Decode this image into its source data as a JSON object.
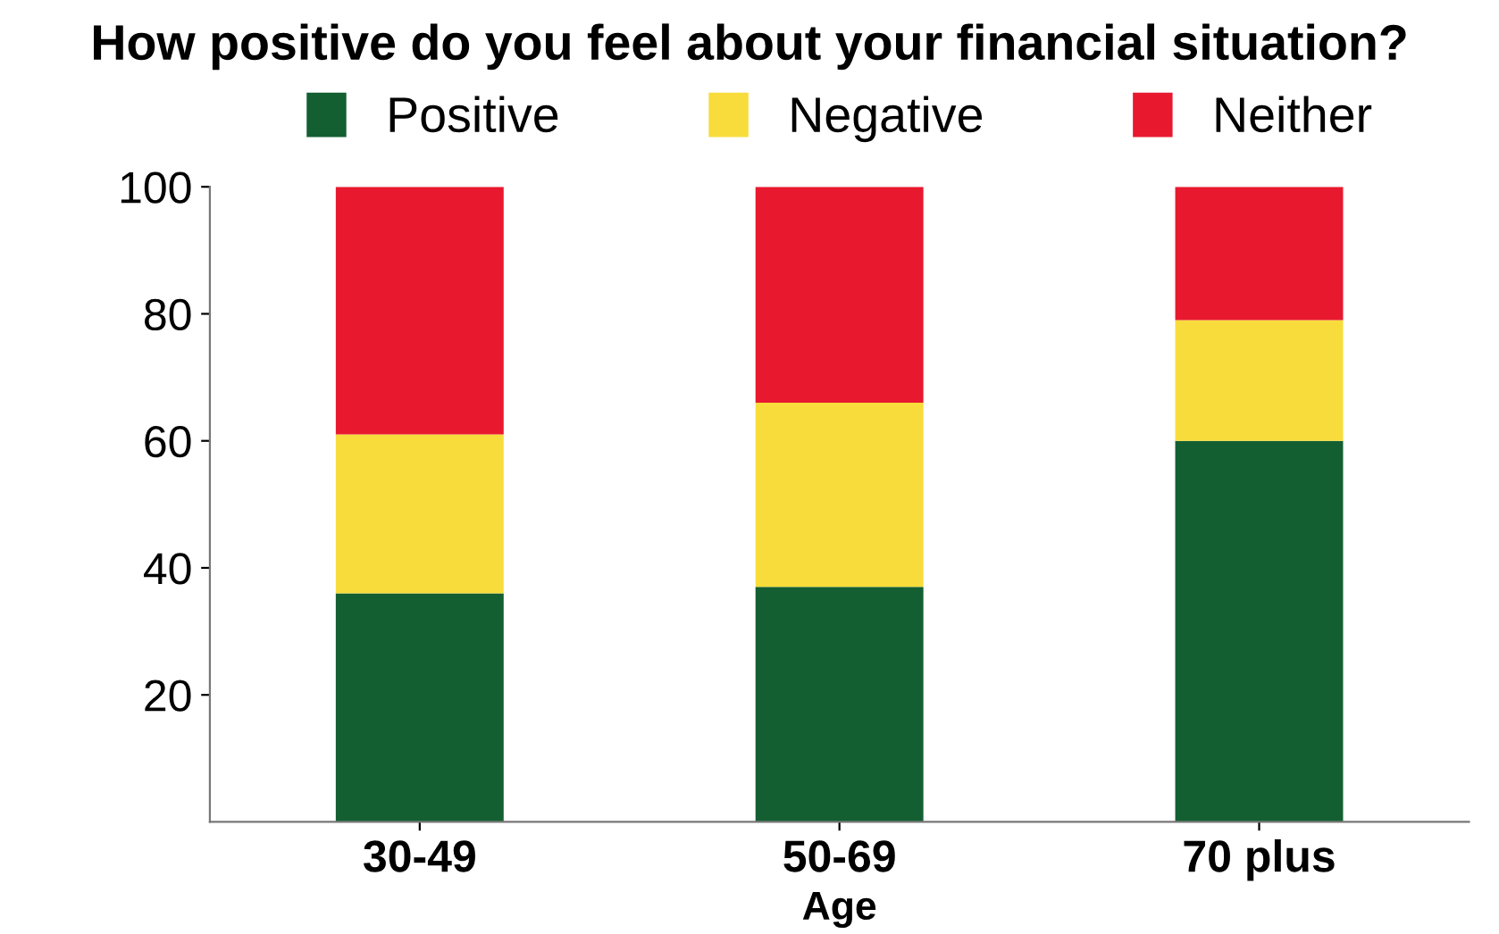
{
  "chart_data": {
    "type": "bar",
    "title": "How positive do you feel about your financial situation?",
    "xlabel": "Age",
    "categories": [
      "30-49",
      "50-69",
      "70 plus"
    ],
    "stacked": true,
    "series": [
      {
        "name": "Positive",
        "color": "#135f32",
        "values": [
          36,
          37,
          60
        ]
      },
      {
        "name": "Negative",
        "color": "#f8dc3b",
        "values": [
          25,
          29,
          19
        ]
      },
      {
        "name": "Neither",
        "color": "#e8192f",
        "values": [
          39,
          34,
          21
        ]
      }
    ],
    "ylim": [
      0,
      100
    ],
    "yticks": [
      20,
      40,
      60,
      80,
      100
    ],
    "grid": false,
    "legend": "top"
  }
}
